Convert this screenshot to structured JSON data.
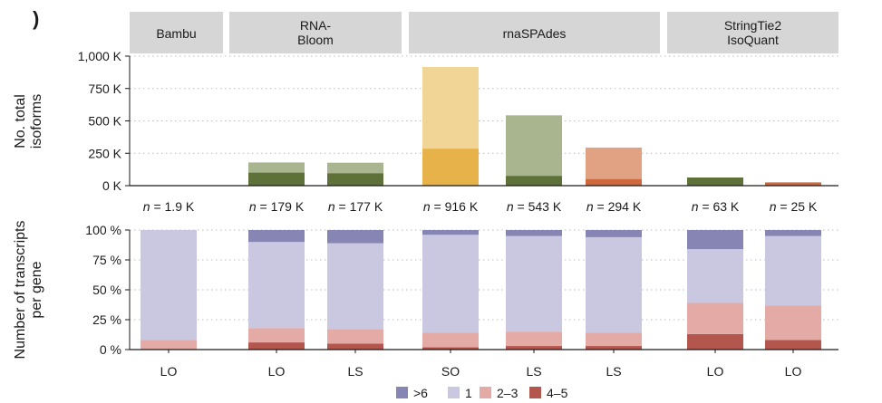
{
  "panel_label": ")",
  "groups": [
    {
      "name": "Bambu",
      "label_lines": [
        "Bambu"
      ]
    },
    {
      "name": "RNA-Bloom",
      "label_lines": [
        "RNA-",
        "Bloom"
      ]
    },
    {
      "name": "rnaSPAdes",
      "label_lines": [
        "rnaSPAdes"
      ]
    },
    {
      "name": "StringTie2 IsoQuant",
      "label_lines": [
        "StringTie2",
        "IsoQuant"
      ]
    }
  ],
  "top_ylabel_lines": [
    "No. total",
    "isoforms"
  ],
  "bottom_ylabel_lines": [
    "Number of transcripts",
    "per gene"
  ],
  "top_ticks": [
    "0 K",
    "250 K",
    "500 K",
    "750 K",
    "1,000 K"
  ],
  "bottom_ticks": [
    "0 %",
    "25 %",
    "50 %",
    "75 %",
    "100 %"
  ],
  "legend": [
    {
      "label": ">6",
      "color": "#8785b4"
    },
    {
      "label": "1",
      "color": "#c9c8e0"
    },
    {
      "label": "2–3",
      "color": "#e3aaa6"
    },
    {
      "label": "4–5",
      "color": "#b3574e"
    }
  ],
  "chart_data": [
    {
      "type": "bar",
      "title": "No. total isoforms",
      "ylabel": "No. total isoforms",
      "ylim": [
        0,
        1000
      ],
      "units": "K",
      "bars": [
        {
          "group": "Bambu",
          "label": "LO",
          "n_label": "n = 1.9 K",
          "total": 1.9,
          "dark": 1.9,
          "light_color": "#a8b58e",
          "dark_color": "#5e7138"
        },
        {
          "group": "RNA-Bloom",
          "label": "LO",
          "n_label": "n = 179 K",
          "total": 179,
          "dark": 100,
          "light_color": "#a8b58e",
          "dark_color": "#5e7138"
        },
        {
          "group": "RNA-Bloom",
          "label": "LS",
          "n_label": "n = 177 K",
          "total": 177,
          "dark": 95,
          "light_color": "#a8b58e",
          "dark_color": "#5e7138"
        },
        {
          "group": "rnaSPAdes",
          "label": "SO",
          "n_label": "n = 916 K",
          "total": 916,
          "dark": 285,
          "light_color": "#f1d597",
          "dark_color": "#e7b24a"
        },
        {
          "group": "rnaSPAdes",
          "label": "LS",
          "n_label": "n = 543 K",
          "total": 543,
          "dark": 75,
          "light_color": "#a8b58e",
          "dark_color": "#5e7138"
        },
        {
          "group": "rnaSPAdes",
          "label": "LS",
          "n_label": "n = 294 K",
          "total": 294,
          "dark": 50,
          "light_color": "#e0a283",
          "dark_color": "#d0683e"
        },
        {
          "group": "StringTie2 IsoQuant",
          "label": "LO",
          "n_label": "n = 63 K",
          "total": 63,
          "dark": 63,
          "light_color": "#a8b58e",
          "dark_color": "#5e7138"
        },
        {
          "group": "StringTie2 IsoQuant",
          "label": "LO",
          "n_label": "n = 25 K",
          "total": 25,
          "dark": 25,
          "light_color": "#e0a283",
          "dark_color": "#d0683e"
        }
      ]
    },
    {
      "type": "bar",
      "title": "Number of transcripts per gene",
      "ylabel": "Number of transcripts per gene",
      "ylim": [
        0,
        100
      ],
      "units": "%",
      "stack_order": [
        "4–5",
        "2–3",
        "1",
        ">6"
      ],
      "bars": [
        {
          "label": "LO",
          "values": {
            "4–5": 0,
            "2–3": 8,
            "1": 92,
            ">6": 0
          }
        },
        {
          "label": "LO",
          "values": {
            "4–5": 6,
            "2–3": 12,
            "1": 72,
            ">6": 10
          }
        },
        {
          "label": "LS",
          "values": {
            "4–5": 5,
            "2–3": 12,
            "1": 72,
            ">6": 11
          }
        },
        {
          "label": "SO",
          "values": {
            "4–5": 2,
            "2–3": 12,
            "1": 82,
            ">6": 4
          }
        },
        {
          "label": "LS",
          "values": {
            "4–5": 3,
            "2–3": 12,
            "1": 80,
            ">6": 5
          }
        },
        {
          "label": "LS",
          "values": {
            "4–5": 3,
            "2–3": 11,
            "1": 80,
            ">6": 6
          }
        },
        {
          "label": "LO",
          "values": {
            "4–5": 13,
            "2–3": 26,
            "1": 45,
            ">6": 16
          }
        },
        {
          "label": "LO",
          "values": {
            "4–5": 8,
            "2–3": 29,
            "1": 58,
            ">6": 5
          }
        }
      ]
    }
  ]
}
